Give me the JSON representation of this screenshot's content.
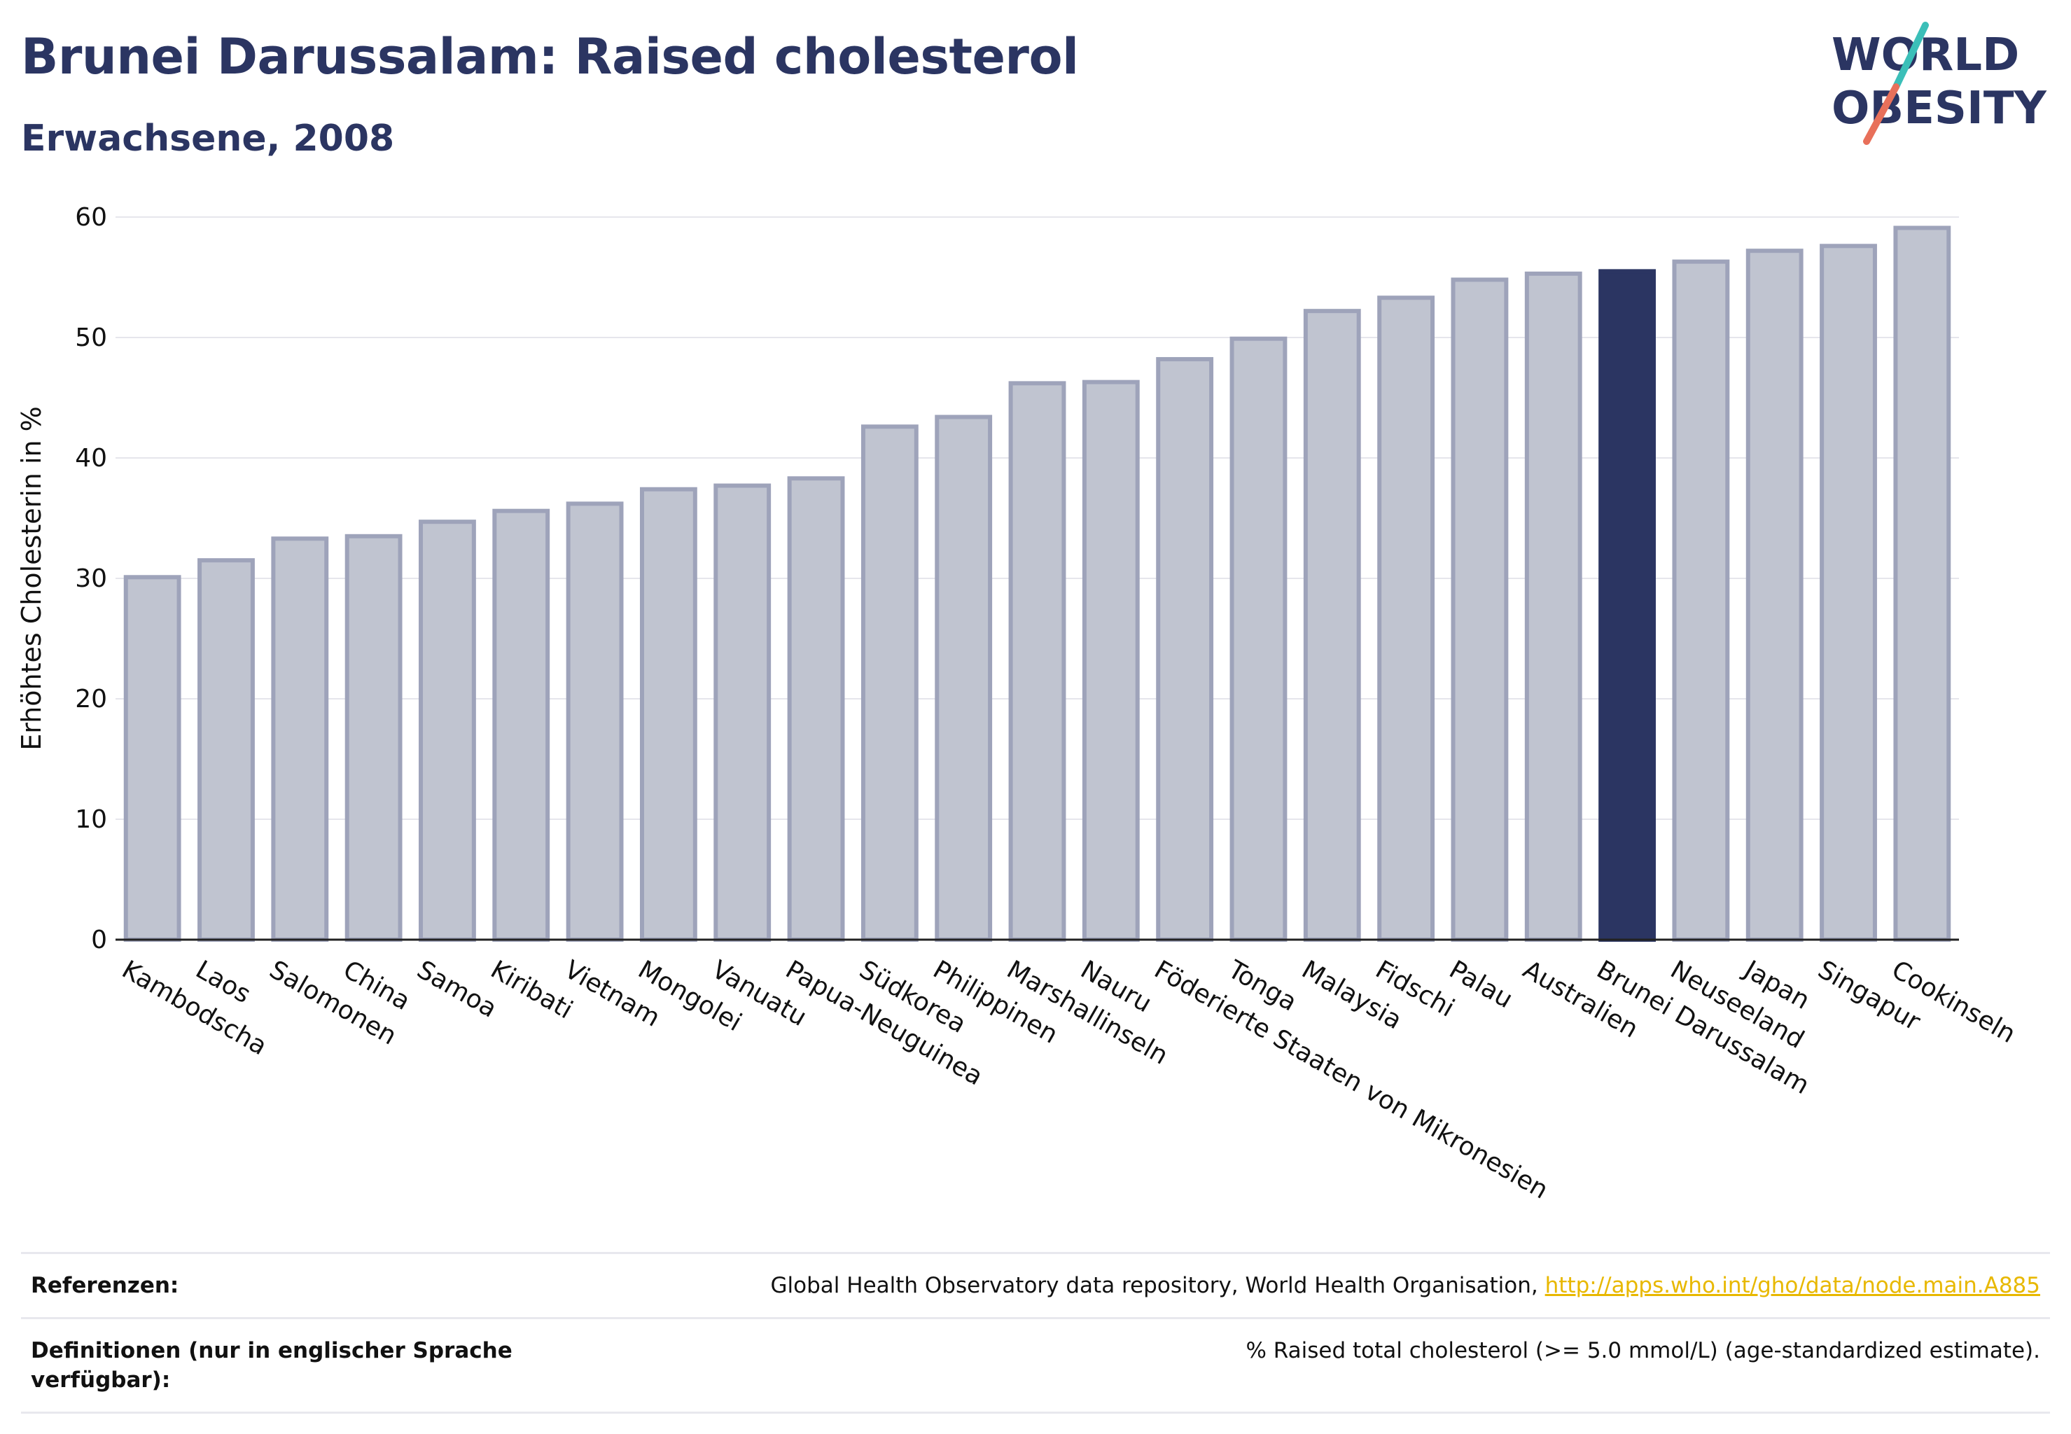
{
  "header": {
    "title": "Brunei Darussalam: Raised cholesterol",
    "subtitle": "Erwachsene, 2008"
  },
  "logo": {
    "line1": "WORLD",
    "line2": "OBESITY"
  },
  "chart_data": {
    "type": "bar",
    "ylabel": "Erhöhtes Cholesterin in %",
    "xlabel": "",
    "ylim": [
      0,
      60
    ],
    "yticks": [
      0,
      10,
      20,
      30,
      40,
      50,
      60
    ],
    "grid": true,
    "highlight": "Brunei Darussalam",
    "colors": {
      "bar": "#c0c4d0",
      "bar_border": "#9ea3ba",
      "highlight": "#2b3562",
      "grid": "#e6e6ec"
    },
    "categories": [
      "Kambodscha",
      "Laos",
      "Salomonen",
      "China",
      "Samoa",
      "Kiribati",
      "Vietnam",
      "Mongolei",
      "Vanuatu",
      "Papua-Neuguinea",
      "Südkorea",
      "Philippinen",
      "Marshallinseln",
      "Nauru",
      "Föderierte Staaten von Mikronesien",
      "Tonga",
      "Malaysia",
      "Fidschi",
      "Palau",
      "Australien",
      "Brunei Darussalam",
      "Neuseeland",
      "Japan",
      "Singapur",
      "Cookinseln"
    ],
    "values": [
      30.1,
      31.5,
      33.3,
      33.5,
      34.7,
      35.6,
      36.2,
      37.4,
      37.7,
      38.3,
      42.6,
      43.4,
      46.2,
      46.3,
      48.2,
      49.9,
      52.2,
      53.3,
      54.8,
      55.3,
      55.5,
      56.3,
      57.2,
      57.6,
      59.1
    ]
  },
  "footer": {
    "references_label": "Referenzen:",
    "references_text": "Global Health Observatory data repository, World Health Organisation, ",
    "references_link": "http://apps.who.int/gho/data/node.main.A885",
    "definitions_label": "Definitionen (nur in englischer Sprache verfügbar):",
    "definitions_text": "% Raised total cholesterol (>= 5.0 mmol/L) (age-standardized estimate)."
  }
}
